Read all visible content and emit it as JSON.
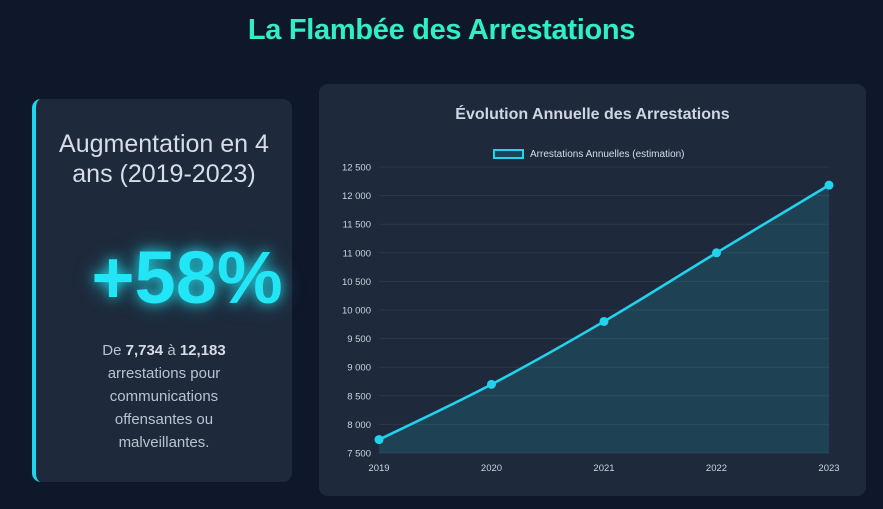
{
  "page": {
    "title": "La Flambée des Arrestations"
  },
  "stat": {
    "heading": "Augmentation en 4 ans (2019-2023)",
    "big_value": "+58%",
    "desc_prefix": "De ",
    "from_value": "7,734",
    "desc_mid": " à ",
    "to_value": "12,183",
    "desc_suffix": " arrestations pour communications offensantes ou malveillantes."
  },
  "colors": {
    "accent": "#22d3ee",
    "title": "#2ff0c4",
    "card": "#1e293b",
    "background": "#0f172a"
  },
  "chart_data": {
    "type": "area",
    "title": "Évolution Annuelle des Arrestations",
    "legend": {
      "label": "Arrestations Annuelles (estimation)",
      "position": "top-center"
    },
    "xlabel": "",
    "ylabel": "",
    "categories": [
      "2019",
      "2020",
      "2021",
      "2022",
      "2023"
    ],
    "series": [
      {
        "name": "Arrestations Annuelles (estimation)",
        "values": [
          7734,
          8700,
          9800,
          11000,
          12183
        ]
      }
    ],
    "ylim": [
      7500,
      12500
    ],
    "yticks": [
      7500,
      8000,
      8500,
      9000,
      9500,
      10000,
      10500,
      11000,
      11500,
      12000,
      12500
    ],
    "ytick_labels": [
      "7 500",
      "8 000",
      "8 500",
      "9 000",
      "9 500",
      "10 000",
      "10 500",
      "11 000",
      "11 500",
      "12 000",
      "12 500"
    ],
    "grid": true
  }
}
